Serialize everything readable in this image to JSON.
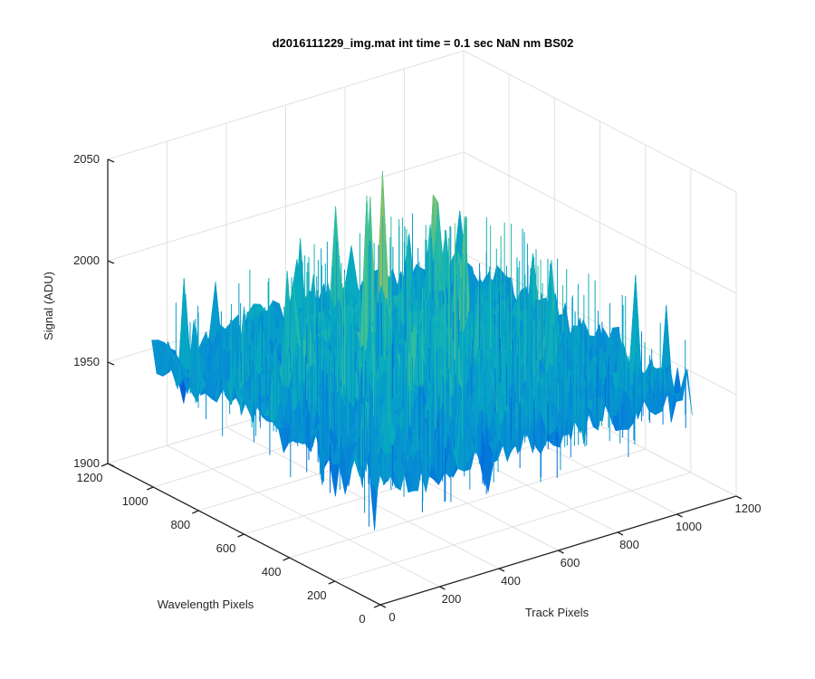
{
  "chart_data": {
    "type": "surface",
    "title": "d2016111229_img.mat int time = 0.1 sec  NaN nm BS02",
    "xlabel": "Track Pixels",
    "ylabel": "Wavelength Pixels",
    "zlabel": "Signal (ADU)",
    "xlim": [
      0,
      1200
    ],
    "ylim": [
      0,
      1200
    ],
    "zlim": [
      1900,
      2050
    ],
    "x_ticks": [
      "0",
      "200",
      "400",
      "600",
      "800",
      "1000",
      "1200"
    ],
    "y_ticks": [
      "0",
      "200",
      "400",
      "600",
      "800",
      "1000",
      "1200"
    ],
    "z_ticks": [
      "1900",
      "1950",
      "2000",
      "2050"
    ],
    "surface_summary": {
      "baseline_signal": 1950,
      "typical_peak_signal": 2000,
      "max_signal": 2045,
      "min_signal": 1920,
      "colormap": "parula"
    },
    "grid": true,
    "colors": {
      "low": "#0072bd",
      "mid": "#1ab1c8",
      "high": "#e5cf3a"
    }
  }
}
